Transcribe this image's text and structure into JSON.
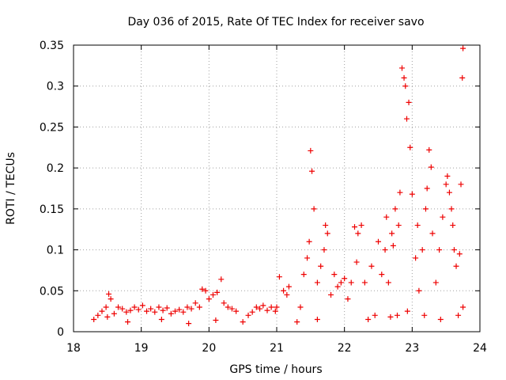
{
  "chart_data": {
    "type": "scatter",
    "title": "Day 036 of 2015, Rate Of TEC Index for receiver savo",
    "xlabel": "GPS time / hours",
    "ylabel": "ROTI / TECUs",
    "xlim": [
      18,
      24
    ],
    "ylim": [
      0,
      0.35
    ],
    "x_ticks": [
      18,
      19,
      20,
      21,
      22,
      23,
      24
    ],
    "x_tick_labels": [
      "18",
      "19",
      "20",
      "21",
      "22",
      "23",
      "24"
    ],
    "y_ticks": [
      0,
      0.05,
      0.1,
      0.15,
      0.2,
      0.25,
      0.3,
      0.35
    ],
    "y_tick_labels": [
      "0",
      "0.05",
      "0.1",
      "0.15",
      "0.2",
      "0.25",
      "0.3",
      "0.35"
    ],
    "grid": true,
    "marker": "+",
    "series_color": "#ee0000",
    "series": [
      {
        "name": "ROTI",
        "x": [
          18.3,
          18.36,
          18.42,
          18.48,
          18.52,
          18.55,
          18.6,
          18.66,
          18.72,
          18.78,
          18.84,
          18.9,
          18.96,
          19.02,
          19.08,
          19.14,
          19.2,
          19.26,
          19.32,
          19.38,
          19.44,
          19.5,
          19.56,
          19.62,
          19.68,
          19.74,
          19.8,
          19.86,
          19.9,
          19.95,
          20.0,
          20.06,
          20.12,
          20.18,
          20.22,
          20.28,
          20.34,
          20.4,
          20.58,
          20.64,
          20.7,
          20.75,
          20.8,
          20.86,
          20.92,
          20.98,
          21.0,
          21.04,
          21.1,
          21.15,
          21.18,
          21.35,
          21.4,
          21.45,
          21.48,
          21.5,
          21.52,
          21.55,
          21.6,
          21.65,
          21.7,
          21.72,
          21.75,
          21.8,
          21.85,
          21.9,
          21.95,
          22.0,
          22.05,
          22.1,
          22.15,
          22.18,
          22.2,
          22.25,
          22.3,
          22.4,
          22.5,
          22.55,
          22.6,
          22.62,
          22.65,
          22.7,
          22.72,
          22.75,
          22.8,
          22.82,
          22.85,
          22.88,
          22.9,
          22.92,
          22.95,
          22.97,
          23.0,
          23.05,
          23.08,
          23.1,
          23.15,
          23.2,
          23.22,
          23.25,
          23.28,
          23.3,
          23.35,
          23.4,
          23.45,
          23.5,
          23.52,
          23.55,
          23.58,
          23.6,
          23.62,
          23.65,
          23.7,
          23.72,
          23.74,
          23.75,
          23.75,
          18.5,
          18.8,
          19.3,
          19.7,
          20.1,
          20.5,
          21.3,
          21.6,
          22.35,
          22.45,
          22.68,
          22.78,
          22.93,
          23.18,
          23.42,
          23.68
        ],
        "y": [
          0.015,
          0.02,
          0.025,
          0.03,
          0.046,
          0.04,
          0.022,
          0.03,
          0.028,
          0.024,
          0.026,
          0.03,
          0.027,
          0.032,
          0.025,
          0.028,
          0.024,
          0.03,
          0.026,
          0.029,
          0.022,
          0.025,
          0.027,
          0.024,
          0.03,
          0.028,
          0.035,
          0.03,
          0.052,
          0.05,
          0.04,
          0.045,
          0.048,
          0.064,
          0.035,
          0.03,
          0.028,
          0.025,
          0.02,
          0.024,
          0.03,
          0.028,
          0.032,
          0.026,
          0.03,
          0.025,
          0.03,
          0.067,
          0.05,
          0.045,
          0.055,
          0.03,
          0.07,
          0.09,
          0.11,
          0.221,
          0.196,
          0.15,
          0.06,
          0.08,
          0.1,
          0.13,
          0.12,
          0.045,
          0.07,
          0.055,
          0.06,
          0.065,
          0.04,
          0.06,
          0.128,
          0.085,
          0.12,
          0.13,
          0.06,
          0.08,
          0.11,
          0.07,
          0.1,
          0.14,
          0.06,
          0.12,
          0.105,
          0.15,
          0.13,
          0.17,
          0.322,
          0.31,
          0.3,
          0.26,
          0.28,
          0.225,
          0.168,
          0.09,
          0.13,
          0.05,
          0.1,
          0.15,
          0.175,
          0.222,
          0.201,
          0.12,
          0.06,
          0.1,
          0.14,
          0.18,
          0.19,
          0.17,
          0.15,
          0.13,
          0.1,
          0.08,
          0.095,
          0.18,
          0.31,
          0.346,
          0.03,
          0.018,
          0.012,
          0.015,
          0.01,
          0.014,
          0.012,
          0.012,
          0.015,
          0.015,
          0.02,
          0.018,
          0.02,
          0.025,
          0.02,
          0.015,
          0.02
        ]
      }
    ]
  }
}
